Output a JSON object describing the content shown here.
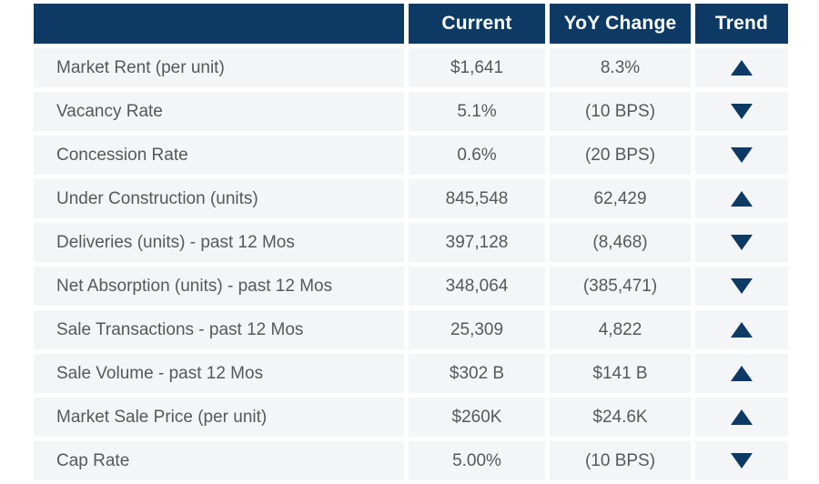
{
  "colors": {
    "navy": "#0d3a64",
    "row-bg": "#f4f5f7",
    "text": "#58585a",
    "header-text": "#ffffff"
  },
  "table": {
    "headers": {
      "metric": "",
      "current": "Current",
      "yoy": "YoY Change",
      "trend": "Trend"
    },
    "rows": [
      {
        "label": "Market Rent (per unit)",
        "current": "$1,641",
        "yoy": "8.3%",
        "trend": "up"
      },
      {
        "label": "Vacancy Rate",
        "current": "5.1%",
        "yoy": "(10 BPS)",
        "trend": "down"
      },
      {
        "label": "Concession Rate",
        "current": "0.6%",
        "yoy": "(20 BPS)",
        "trend": "down"
      },
      {
        "label": "Under Construction (units)",
        "current": "845,548",
        "yoy": "62,429",
        "trend": "up"
      },
      {
        "label": "Deliveries (units) - past 12 Mos",
        "current": "397,128",
        "yoy": "(8,468)",
        "trend": "down"
      },
      {
        "label": "Net Absorption (units) - past 12 Mos",
        "current": "348,064",
        "yoy": "(385,471)",
        "trend": "down"
      },
      {
        "label": "Sale Transactions - past 12 Mos",
        "current": "25,309",
        "yoy": "4,822",
        "trend": "up"
      },
      {
        "label": "Sale Volume - past 12 Mos",
        "current": "$302 B",
        "yoy": "$141 B",
        "trend": "up"
      },
      {
        "label": "Market Sale Price (per unit)",
        "current": "$260K",
        "yoy": "$24.6K",
        "trend": "up"
      },
      {
        "label": "Cap Rate",
        "current": "5.00%",
        "yoy": "(10 BPS)",
        "trend": "down"
      }
    ]
  },
  "chart_data": {
    "type": "table",
    "title": "",
    "columns": [
      "",
      "Current",
      "YoY Change",
      "Trend"
    ],
    "rows": [
      [
        "Market Rent (per unit)",
        "$1,641",
        "8.3%",
        "up"
      ],
      [
        "Vacancy Rate",
        "5.1%",
        "(10 BPS)",
        "down"
      ],
      [
        "Concession Rate",
        "0.6%",
        "(20 BPS)",
        "down"
      ],
      [
        "Under Construction (units)",
        "845,548",
        "62,429",
        "up"
      ],
      [
        "Deliveries (units) - past 12 Mos",
        "397,128",
        "(8,468)",
        "down"
      ],
      [
        "Net Absorption (units) - past 12 Mos",
        "348,064",
        "(385,471)",
        "down"
      ],
      [
        "Sale Transactions - past 12 Mos",
        "25,309",
        "4,822",
        "up"
      ],
      [
        "Sale Volume - past 12 Mos",
        "$302 B",
        "$141 B",
        "up"
      ],
      [
        "Market Sale Price (per unit)",
        "$260K",
        "$24.6K",
        "up"
      ],
      [
        "Cap Rate",
        "5.00%",
        "(10 BPS)",
        "down"
      ]
    ],
    "legend": "Trend arrows: up = navy upward triangle, down = navy downward triangle"
  }
}
